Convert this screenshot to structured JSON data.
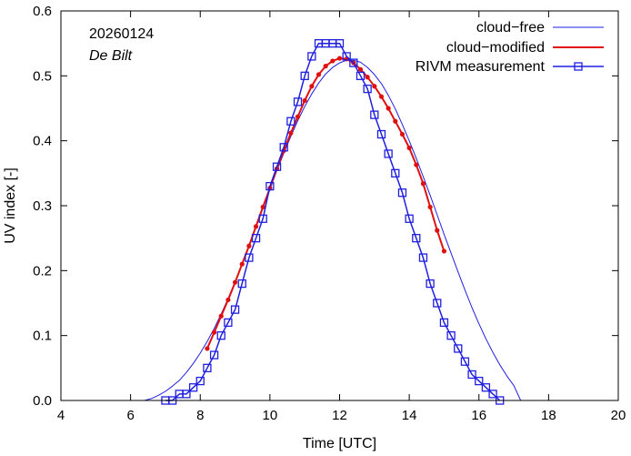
{
  "chart_data": {
    "type": "line",
    "xlabel": "Time  [UTC]",
    "ylabel": "UV index  [-]",
    "xlim": [
      4,
      20
    ],
    "ylim": [
      0,
      0.6
    ],
    "xticks": [
      "4",
      "6",
      "8",
      "10",
      "12",
      "14",
      "16",
      "18",
      "20"
    ],
    "yticks": [
      "0.0",
      "0.1",
      "0.2",
      "0.3",
      "0.4",
      "0.5",
      "0.6"
    ],
    "annotations": {
      "date": "20260124",
      "location": "De Bilt"
    },
    "legend_position": "top-right",
    "colors": {
      "cloud_free": "#1f1fe0",
      "cloud_modified": "#e01010",
      "measurement": "#1f1fe0"
    },
    "series": [
      {
        "name": "cloud−free",
        "style": "line",
        "x": [
          6.4,
          6.6,
          6.8,
          7.0,
          7.2,
          7.4,
          7.6,
          7.8,
          8.0,
          8.2,
          8.4,
          8.6,
          8.8,
          9.0,
          9.2,
          9.4,
          9.6,
          9.8,
          10.0,
          10.2,
          10.4,
          10.6,
          10.8,
          11.0,
          11.2,
          11.4,
          11.6,
          11.8,
          12.0,
          12.2,
          12.4,
          12.6,
          12.8,
          13.0,
          13.2,
          13.4,
          13.6,
          13.8,
          14.0,
          14.2,
          14.4,
          14.6,
          14.8,
          15.0,
          15.2,
          15.4,
          15.6,
          15.8,
          16.0,
          16.2,
          16.4,
          16.6,
          16.8,
          17.0,
          17.2
        ],
        "values": [
          0.0,
          0.003,
          0.008,
          0.014,
          0.022,
          0.031,
          0.043,
          0.057,
          0.073,
          0.091,
          0.111,
          0.133,
          0.157,
          0.183,
          0.21,
          0.238,
          0.267,
          0.296,
          0.325,
          0.354,
          0.381,
          0.407,
          0.431,
          0.453,
          0.472,
          0.489,
          0.503,
          0.513,
          0.52,
          0.524,
          0.524,
          0.521,
          0.513,
          0.502,
          0.488,
          0.47,
          0.449,
          0.425,
          0.4,
          0.373,
          0.345,
          0.316,
          0.286,
          0.256,
          0.227,
          0.198,
          0.17,
          0.143,
          0.118,
          0.095,
          0.074,
          0.055,
          0.038,
          0.023,
          0.0
        ]
      },
      {
        "name": "cloud−modified",
        "style": "line-points",
        "x": [
          8.2,
          8.4,
          8.6,
          8.8,
          9.0,
          9.2,
          9.4,
          9.6,
          9.8,
          10.0,
          10.2,
          10.4,
          10.6,
          10.8,
          11.0,
          11.2,
          11.4,
          11.6,
          11.8,
          12.0,
          12.2,
          12.4,
          12.6,
          12.8,
          13.0,
          13.2,
          13.4,
          13.6,
          13.8,
          14.0,
          14.2,
          14.4,
          14.6,
          14.8,
          15.0
        ],
        "values": [
          0.08,
          0.105,
          0.13,
          0.155,
          0.182,
          0.21,
          0.238,
          0.268,
          0.298,
          0.327,
          0.357,
          0.385,
          0.412,
          0.437,
          0.462,
          0.484,
          0.502,
          0.515,
          0.523,
          0.527,
          0.526,
          0.52,
          0.51,
          0.498,
          0.484,
          0.468,
          0.45,
          0.43,
          0.41,
          0.389,
          0.363,
          0.334,
          0.298,
          0.262,
          0.23
        ]
      },
      {
        "name": "RIVM measurement",
        "style": "line-squares",
        "x": [
          7.0,
          7.2,
          7.4,
          7.6,
          7.8,
          8.0,
          8.2,
          8.4,
          8.6,
          8.8,
          9.0,
          9.2,
          9.4,
          9.6,
          9.8,
          10.0,
          10.2,
          10.4,
          10.6,
          10.8,
          11.0,
          11.2,
          11.4,
          11.6,
          11.8,
          12.0,
          12.2,
          12.4,
          12.6,
          12.8,
          13.0,
          13.2,
          13.4,
          13.6,
          13.8,
          14.0,
          14.2,
          14.4,
          14.6,
          14.8,
          15.0,
          15.2,
          15.4,
          15.6,
          15.8,
          16.0,
          16.2,
          16.4,
          16.6
        ],
        "values": [
          0.0,
          0.0,
          0.01,
          0.01,
          0.02,
          0.03,
          0.05,
          0.07,
          0.1,
          0.12,
          0.14,
          0.18,
          0.22,
          0.25,
          0.28,
          0.33,
          0.36,
          0.39,
          0.43,
          0.46,
          0.5,
          0.53,
          0.55,
          0.55,
          0.55,
          0.55,
          0.53,
          0.52,
          0.5,
          0.48,
          0.44,
          0.41,
          0.38,
          0.35,
          0.32,
          0.28,
          0.25,
          0.22,
          0.18,
          0.15,
          0.12,
          0.1,
          0.08,
          0.06,
          0.04,
          0.03,
          0.02,
          0.01,
          0.0
        ]
      }
    ]
  }
}
